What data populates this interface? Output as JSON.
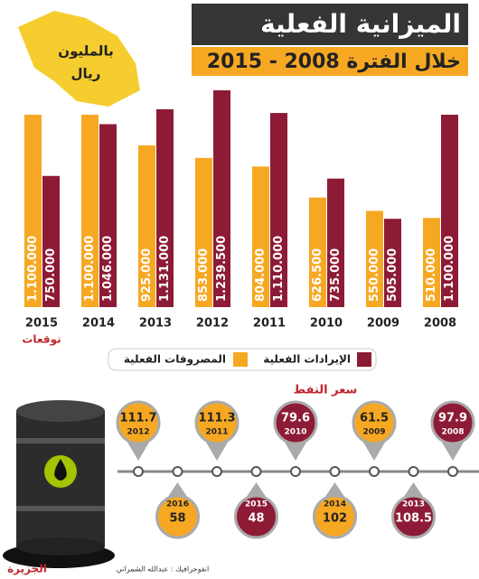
{
  "header": {
    "title": "الميزانية الفعلية",
    "subtitle": "خلال الفترة 2008 - 2015",
    "unit_line1": "بالمليون",
    "unit_line2": "ريال"
  },
  "chart_data": [
    {
      "type": "bar",
      "categories": [
        "2015",
        "2014",
        "2013",
        "2012",
        "2011",
        "2010",
        "2009",
        "2008"
      ],
      "note": "توقعات",
      "legend_position": "bottom",
      "series": [
        {
          "name": "المصروفات الفعلية",
          "color": "#f7a823",
          "values": [
            1100000,
            1100000,
            925000,
            853000,
            804000,
            626500,
            550000,
            510000
          ],
          "value_labels": [
            "1.100.000",
            "1.100.000",
            "925.000",
            "853.000",
            "804.000",
            "626.500",
            "550.000",
            "510.000"
          ]
        },
        {
          "name": "الإيرادات الفعلية",
          "color": "#8e1b35",
          "values": [
            750000,
            1046000,
            1131000,
            1239500,
            1110000,
            735000,
            505000,
            1100000
          ],
          "value_labels": [
            "750.000",
            "1.046.000",
            "1.131.000",
            "1.239.500",
            "1.110.000",
            "735.000",
            "505.000",
            "1.100.000"
          ]
        }
      ]
    },
    {
      "type": "pins",
      "title": "سعر النفط",
      "categories": [
        "2012",
        "2016",
        "2011",
        "2015",
        "2010",
        "2014",
        "2009",
        "2013",
        "2008"
      ],
      "values": [
        111.7,
        58,
        111.3,
        48,
        79.6,
        102,
        61.5,
        108.5,
        97.9
      ],
      "colors": [
        "#f7a823",
        "#f7a823",
        "#f7a823",
        "#8e1b35",
        "#8e1b35",
        "#f7a823",
        "#f7a823",
        "#8e1b35",
        "#8e1b35"
      ]
    }
  ],
  "footer": {
    "credit": "انفوجرافيك : عبدالله الشمراني",
    "logo": "الجزيرة"
  }
}
